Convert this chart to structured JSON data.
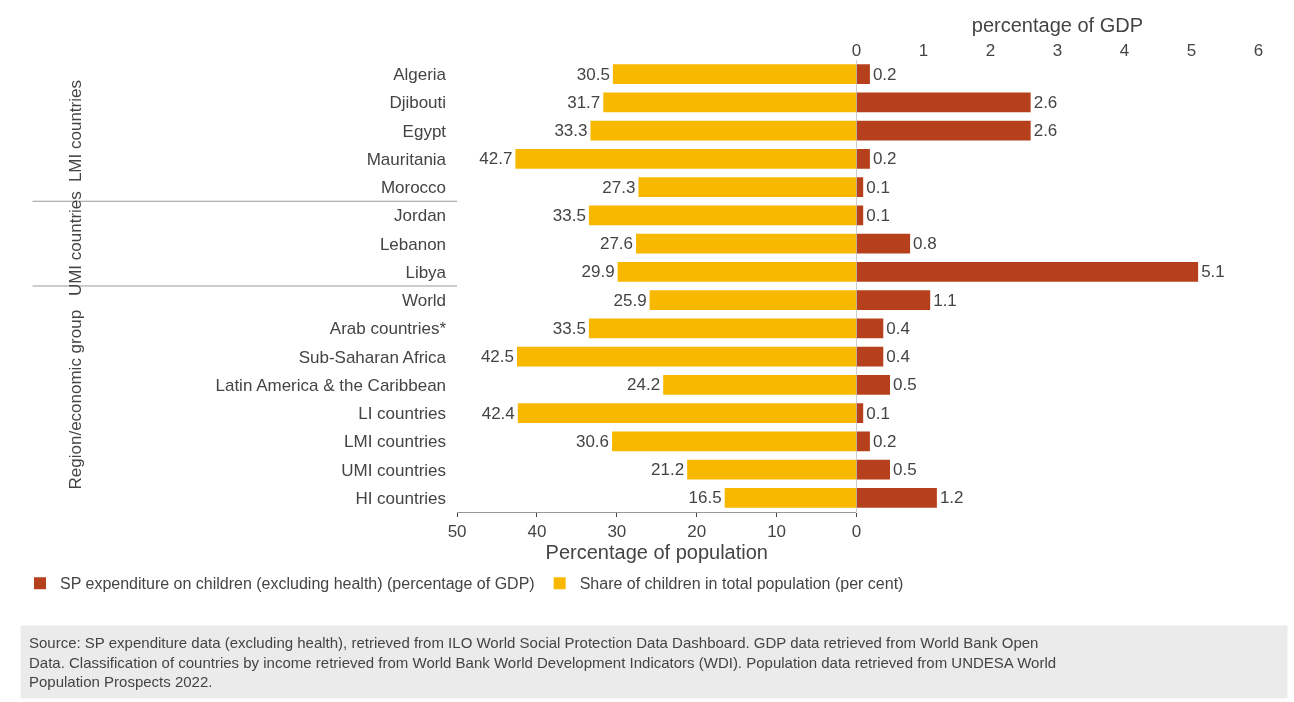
{
  "chart_data": [
    {
      "type": "bar",
      "orientation": "horizontal",
      "xlabel": "Percentage of population",
      "categories": [
        "Algeria",
        "Djibouti",
        "Egypt",
        "Mauritania",
        "Morocco",
        "Jordan",
        "Lebanon",
        "Libya",
        "World",
        "Arab countries*",
        "Sub-Saharan Africa",
        "Latin America & the Caribbean",
        "LI countries",
        "LMI countries",
        "UMI countries",
        "HI countries"
      ],
      "series": [
        {
          "name": "Share of children in total population (per cent)",
          "color": "#f9b800",
          "values": [
            30.5,
            31.7,
            33.3,
            42.7,
            27.3,
            33.5,
            27.6,
            29.9,
            25.9,
            33.5,
            42.5,
            24.2,
            42.4,
            30.6,
            21.2,
            16.5
          ]
        }
      ],
      "xlim": [
        50,
        0
      ],
      "xticks": [
        50,
        40,
        30,
        20,
        10,
        0
      ],
      "data_labels": true,
      "legend": "bottom",
      "annotations": [
        "LMI countries",
        "UMI countries",
        "Region/economic group",
        "Source: SP expenditure data (excluding health), retrieved from ILO World Social Protection Data Dashboard. GDP data retrieved from World Bank Open Data. Classification of countries by income retrieved from World Bank World Development Indicators (WDI). Population data retrieved from UNDESA World Population Prospects 2022."
      ]
    },
    {
      "type": "bar",
      "orientation": "horizontal",
      "xlabel": "percentage of GDP",
      "tick_labels": "x",
      "series": [
        {
          "name": "SP expenditure on children (excluding health) (percentage of GDP)",
          "color": "#b5401b",
          "values": [
            0.2,
            2.6,
            2.6,
            0.2,
            0.1,
            0.1,
            0.8,
            5.1,
            1.1,
            0.4,
            0.4,
            0.5,
            0.1,
            0.2,
            0.5,
            1.2
          ]
        }
      ],
      "xlim": [
        0,
        6
      ],
      "xticks": [
        0,
        1,
        2,
        3,
        4,
        5,
        6
      ],
      "data_labels": true,
      "legend": "bottom"
    }
  ]
}
